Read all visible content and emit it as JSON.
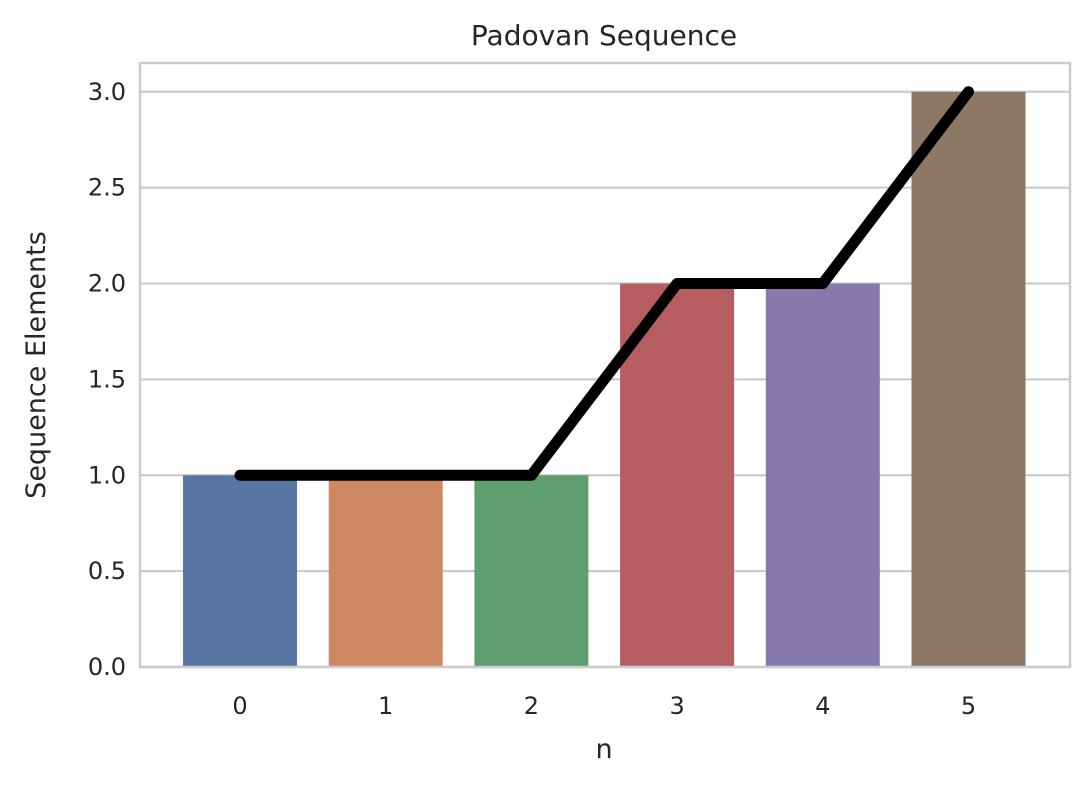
{
  "chart_data": {
    "type": "bar",
    "title": "Padovan Sequence",
    "xlabel": "n",
    "ylabel": "Sequence Elements",
    "categories": [
      "0",
      "1",
      "2",
      "3",
      "4",
      "5"
    ],
    "values": [
      1,
      1,
      1,
      2,
      2,
      3
    ],
    "bar_colors": [
      "#5875a4",
      "#cc8963",
      "#5f9e6e",
      "#b55d60",
      "#857aab",
      "#8d7866"
    ],
    "overlay_line": {
      "values": [
        1,
        1,
        1,
        2,
        2,
        3
      ],
      "color": "#000000"
    },
    "ylim": [
      0,
      3.15
    ],
    "yticks": [
      "0.0",
      "0.5",
      "1.0",
      "1.5",
      "2.0",
      "2.5",
      "3.0"
    ],
    "grid": true
  }
}
